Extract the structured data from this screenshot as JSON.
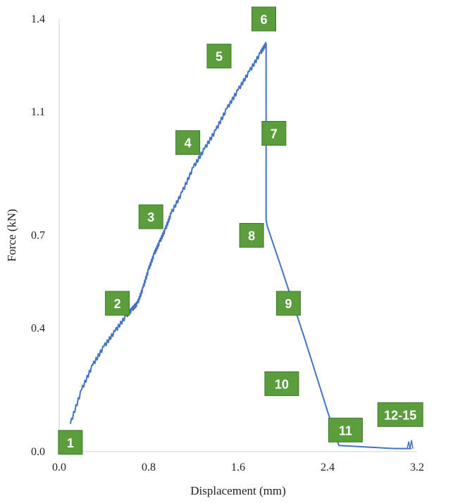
{
  "chart_data": {
    "type": "line",
    "title": "",
    "xlabel": "Displacement (mm)",
    "ylabel": "Force (kN)",
    "xlim": [
      0.0,
      3.2
    ],
    "ylim": [
      0.0,
      1.4
    ],
    "x_ticks": [
      "0.0",
      "0.8",
      "1.6",
      "2.4",
      "3.2"
    ],
    "y_ticks": [
      "0.0",
      "0.4",
      "0.7",
      "1.1",
      "1.4"
    ],
    "grid": false,
    "legend": "none",
    "series": [
      {
        "color": "#4472c4",
        "x": [
          0.1,
          0.2,
          0.3,
          0.4,
          0.5,
          0.6,
          0.65,
          0.7,
          0.75,
          0.8,
          0.85,
          0.9,
          0.95,
          1.0,
          1.1,
          1.2,
          1.3,
          1.4,
          1.5,
          1.6,
          1.7,
          1.8,
          1.85,
          1.85,
          1.86,
          2.0,
          2.2,
          2.4,
          2.5,
          3.0,
          3.15
        ],
        "y": [
          0.09,
          0.2,
          0.28,
          0.34,
          0.39,
          0.44,
          0.46,
          0.48,
          0.53,
          0.59,
          0.64,
          0.68,
          0.72,
          0.77,
          0.84,
          0.92,
          0.98,
          1.04,
          1.11,
          1.17,
          1.23,
          1.29,
          1.32,
          0.75,
          0.73,
          0.58,
          0.36,
          0.13,
          0.02,
          0.01,
          0.01
        ]
      }
    ],
    "markers": [
      {
        "label": "1",
        "x": 0.1,
        "y": 0.03
      },
      {
        "label": "2",
        "x": 0.52,
        "y": 0.48
      },
      {
        "label": "3",
        "x": 0.82,
        "y": 0.76
      },
      {
        "label": "4",
        "x": 1.15,
        "y": 1.0
      },
      {
        "label": "5",
        "x": 1.43,
        "y": 1.28
      },
      {
        "label": "6",
        "x": 1.83,
        "y": 1.4
      },
      {
        "label": "7",
        "x": 1.92,
        "y": 1.03
      },
      {
        "label": "8",
        "x": 1.72,
        "y": 0.7
      },
      {
        "label": "9",
        "x": 2.05,
        "y": 0.48
      },
      {
        "label": "10",
        "x": 1.99,
        "y": 0.22
      },
      {
        "label": "11",
        "x": 2.56,
        "y": 0.07
      },
      {
        "label": "12-15",
        "x": 3.05,
        "y": 0.12
      }
    ],
    "marker_color": "#5b9d3c"
  }
}
